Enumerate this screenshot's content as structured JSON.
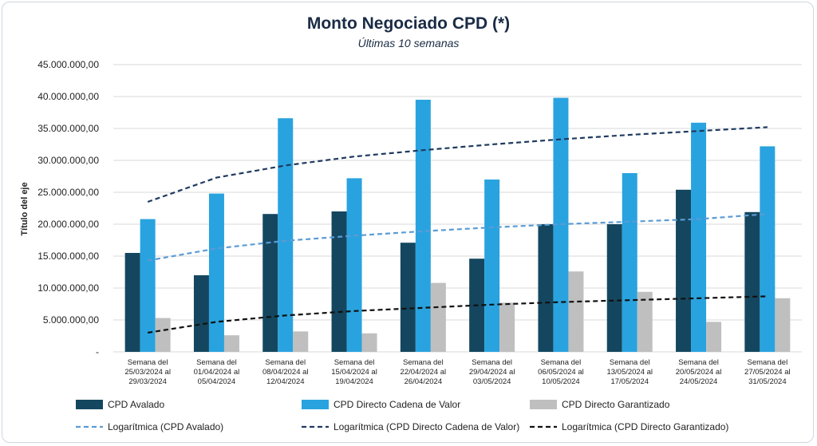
{
  "chart_data": {
    "type": "bar",
    "title": "Monto Negociado CPD (*)",
    "subtitle": "Últimas 10 semanas",
    "ylabel": "Título del eje",
    "ylim": [
      0,
      45000000
    ],
    "yticks": [
      "-",
      "5.000.000,00",
      "10.000.000,00",
      "15.000.000,00",
      "20.000.000,00",
      "25.000.000,00",
      "30.000.000,00",
      "35.000.000,00",
      "40.000.000,00",
      "45.000.000,00"
    ],
    "grid": true,
    "legend_position": "bottom",
    "categories": [
      [
        "Semana del",
        "25/03/2024 al",
        "29/03/2024"
      ],
      [
        "Semana del",
        "01/04/2024 al",
        "05/04/2024"
      ],
      [
        "Semana del",
        "08/04/2024 al",
        "12/04/2024"
      ],
      [
        "Semana del",
        "15/04/2024 al",
        "19/04/2024"
      ],
      [
        "Semana del",
        "22/04/2024 al",
        "26/04/2024"
      ],
      [
        "Semana del",
        "29/04/2024 al",
        "03/05/2024"
      ],
      [
        "Semana del",
        "06/05/2024 al",
        "10/05/2024"
      ],
      [
        "Semana del",
        "13/05/2024 al",
        "17/05/2024"
      ],
      [
        "Semana del",
        "20/05/2024 al",
        "24/05/2024"
      ],
      [
        "Semana del",
        "27/05/2024 al",
        "31/05/2024"
      ]
    ],
    "series": [
      {
        "name": "CPD Avalado",
        "color": "#14475f",
        "values": [
          15500000,
          12000000,
          21600000,
          22000000,
          17100000,
          14600000,
          20000000,
          20000000,
          25400000,
          21900000
        ]
      },
      {
        "name": "CPD Directo Cadena de Valor",
        "color": "#29a3df",
        "values": [
          20800000,
          24800000,
          36600000,
          27200000,
          39500000,
          27000000,
          39800000,
          28000000,
          35900000,
          32200000
        ]
      },
      {
        "name": "CPD Directo Garantizado",
        "color": "#bfbfbf",
        "values": [
          5300000,
          2600000,
          3200000,
          2900000,
          10800000,
          7700000,
          12600000,
          9400000,
          4700000,
          8400000
        ]
      }
    ],
    "trendlines": [
      {
        "name": "Logarítmica (CPD Avalado)",
        "color": "#5b9bd5",
        "values": [
          14300000,
          16200000,
          17400000,
          18200000,
          18900000,
          19500000,
          20000000,
          20400000,
          20800000,
          21600000
        ]
      },
      {
        "name": "Logarítmica (CPD Directo Cadena de Valor)",
        "color": "#1f3a5f",
        "values": [
          23500000,
          27300000,
          29200000,
          30600000,
          31600000,
          32500000,
          33300000,
          34000000,
          34600000,
          35200000
        ]
      },
      {
        "name": "Logarítmica (CPD Directo Garantizado)",
        "color": "#111111",
        "values": [
          3000000,
          4700000,
          5700000,
          6400000,
          6900000,
          7400000,
          7800000,
          8100000,
          8400000,
          8700000
        ]
      }
    ]
  }
}
